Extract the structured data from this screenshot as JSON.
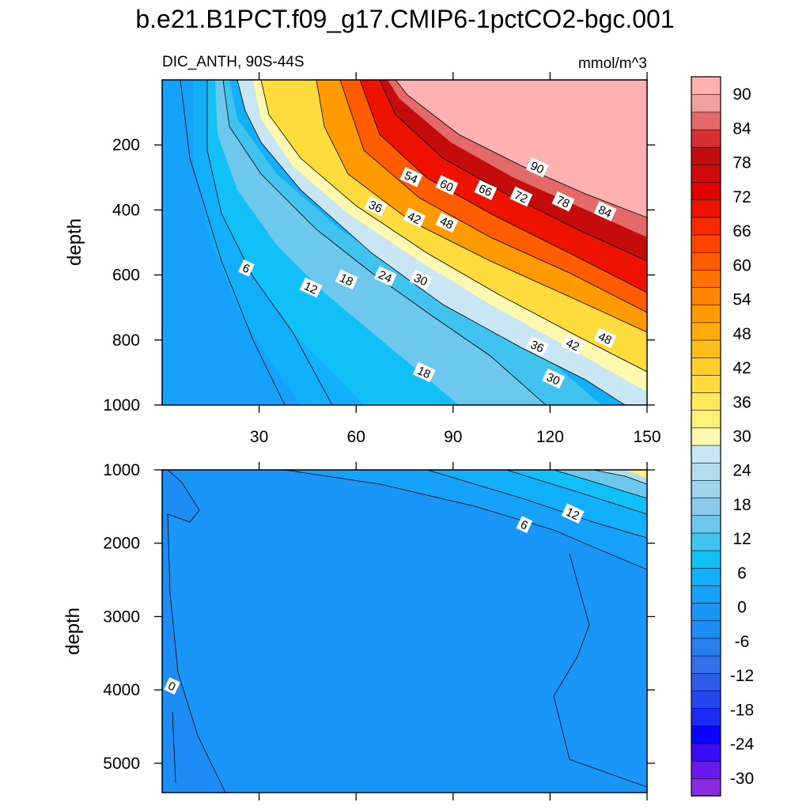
{
  "chart_data": {
    "type": "heatmap",
    "title": "b.e21.B1PCT.f09_g17.CMIP6-1pctCO2-bgc.001",
    "subtitle_left": "DIC_ANTH, 90S-44S",
    "units": "mmol/m^3",
    "xlabel": "",
    "x_range": [
      0,
      150
    ],
    "x_ticks": [
      30,
      60,
      90,
      120,
      150
    ],
    "x_tick_labels": [
      "30",
      "60",
      "90",
      "120",
      "150"
    ],
    "panels": [
      {
        "name": "upper",
        "ylabel": "depth",
        "y_range": [
          0,
          1000
        ],
        "y_ticks": [
          200,
          400,
          600,
          800,
          1000
        ],
        "y_tick_labels": [
          "200",
          "400",
          "600",
          "800",
          "1000"
        ],
        "contour_labels": [
          {
            "text": "6",
            "x": 26,
            "y": 580
          },
          {
            "text": "12",
            "x": 46,
            "y": 640
          },
          {
            "text": "18",
            "x": 57,
            "y": 615
          },
          {
            "text": "24",
            "x": 69,
            "y": 605
          },
          {
            "text": "30",
            "x": 80,
            "y": 615
          },
          {
            "text": "36",
            "x": 66,
            "y": 390
          },
          {
            "text": "42",
            "x": 78,
            "y": 425
          },
          {
            "text": "48",
            "x": 88,
            "y": 440
          },
          {
            "text": "54",
            "x": 77,
            "y": 300
          },
          {
            "text": "60",
            "x": 88,
            "y": 325
          },
          {
            "text": "66",
            "x": 100,
            "y": 340
          },
          {
            "text": "72",
            "x": 111,
            "y": 360
          },
          {
            "text": "78",
            "x": 124,
            "y": 375
          },
          {
            "text": "84",
            "x": 137,
            "y": 405
          },
          {
            "text": "90",
            "x": 116,
            "y": 270
          },
          {
            "text": "36",
            "x": 116,
            "y": 820
          },
          {
            "text": "42",
            "x": 127,
            "y": 815
          },
          {
            "text": "48",
            "x": 137,
            "y": 795
          },
          {
            "text": "18",
            "x": 81,
            "y": 900
          },
          {
            "text": "30",
            "x": 121,
            "y": 920
          }
        ]
      },
      {
        "name": "lower",
        "ylabel": "depth",
        "y_range": [
          1000,
          5400
        ],
        "y_ticks": [
          1000,
          2000,
          3000,
          4000,
          5000
        ],
        "y_tick_labels": [
          "1000",
          "2000",
          "3000",
          "4000",
          "5000"
        ],
        "contour_labels": [
          {
            "text": "6",
            "x": 112,
            "y": 1750
          },
          {
            "text": "12",
            "x": 127,
            "y": 1600
          },
          {
            "text": "0",
            "x": 3,
            "y": 3950
          }
        ]
      }
    ],
    "colorbar": {
      "levels": [
        -30,
        -27,
        -24,
        -21,
        -18,
        -15,
        -12,
        -9,
        -6,
        -3,
        0,
        3,
        6,
        9,
        12,
        15,
        18,
        21,
        24,
        27,
        30,
        33,
        36,
        39,
        42,
        45,
        48,
        51,
        54,
        57,
        60,
        63,
        66,
        69,
        72,
        75,
        78,
        81,
        84,
        87,
        90
      ],
      "labels": [
        "90",
        "84",
        "78",
        "72",
        "66",
        "60",
        "54",
        "48",
        "42",
        "36",
        "30",
        "24",
        "18",
        "12",
        "6",
        "0",
        "-6",
        "-12",
        "-18",
        "-24",
        "-30"
      ],
      "colors": [
        "#8a2be2",
        "#6a18f2",
        "#3a0cfb",
        "#0a04fc",
        "#1a2cf6",
        "#2446ee",
        "#2d5ce6",
        "#3470e8",
        "#2a7fef",
        "#1e8cf5",
        "#1a96f8",
        "#16a2fb",
        "#12b0fa",
        "#12c0f8",
        "#40c4ef",
        "#6ec8ee",
        "#8ccae9",
        "#a0d3ee",
        "#b4dcf0",
        "#c8e6f4",
        "#fff8b0",
        "#fff07a",
        "#ffe85a",
        "#ffdc3e",
        "#ffcd2a",
        "#ffbd1a",
        "#ffab0a",
        "#ff9a00",
        "#ff8600",
        "#ff7200",
        "#ff5c00",
        "#ff4400",
        "#fa2a00",
        "#ee1200",
        "#e00000",
        "#d20a0a",
        "#c40c0c",
        "#d83030",
        "#e46a6a",
        "#f0a0a0",
        "#ffb0b0"
      ]
    }
  }
}
